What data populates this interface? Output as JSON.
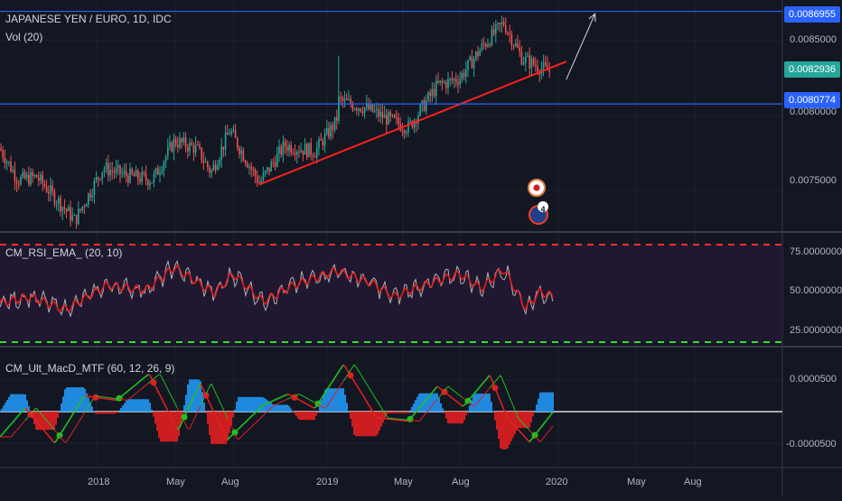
{
  "colors": {
    "bg": "#131722",
    "grid": "#1e222d",
    "separator": "#363a45",
    "up": "#26a69a",
    "down": "#ef5350",
    "trendline": "#ff1f1f",
    "hline": "#2962ff",
    "current_tag": "#26a69a",
    "rsi_line": "#e02020",
    "rsi_signal": "#b0b0b0",
    "rsi_upper": "#ff3030",
    "rsi_lower": "#33dd33",
    "rsi_band": "#1f1830",
    "macd_zero": "#ffffff",
    "macd_green": "#22c022",
    "macd_red": "#e02020",
    "hist_up": "#2196f3",
    "hist_down": "#e02020"
  },
  "header": {
    "symbol_title": "JAPANESE YEN / EURO, 1D, IDC",
    "volume_label": "Vol (20)"
  },
  "price_tags": [
    {
      "value": "0.0086955",
      "kind": "hline"
    },
    {
      "value": "0.0082936",
      "kind": "current"
    },
    {
      "value": "0.0080774",
      "kind": "hline"
    }
  ],
  "events": {
    "marker_count": "4"
  },
  "chart_data": [
    {
      "type": "candlestick",
      "title": "JAPANESE YEN / EURO, 1D, IDC",
      "x_ticks": [
        "2018",
        "May",
        "Aug",
        "2019",
        "May",
        "Aug",
        "2020",
        "May",
        "Aug"
      ],
      "y_ticks": [
        "0.0085000",
        "0.0080000",
        "0.0075000"
      ],
      "ylim": [
        0.0071,
        0.0089
      ],
      "price_path": [
        [
          "2017-09-20",
          0.00778
        ],
        [
          "2017-10-15",
          0.00757
        ],
        [
          "2017-11-10",
          0.00759
        ],
        [
          "2017-12-15",
          0.0074
        ],
        [
          "2018-01-02",
          0.0073
        ],
        [
          "2018-02-10",
          0.00765
        ],
        [
          "2018-03-15",
          0.0076
        ],
        [
          "2018-04-20",
          0.00757
        ],
        [
          "2018-05-20",
          0.00783
        ],
        [
          "2018-06-20",
          0.00778
        ],
        [
          "2018-07-10",
          0.00762
        ],
        [
          "2018-08-05",
          0.0079
        ],
        [
          "2018-09-15",
          0.00755
        ],
        [
          "2018-10-20",
          0.0078
        ],
        [
          "2018-12-01",
          0.00776
        ],
        [
          "2018-12-31",
          0.00796
        ],
        [
          "2019-01-03",
          0.0081
        ],
        [
          "2019-02-10",
          0.00805
        ],
        [
          "2019-03-15",
          0.00797
        ],
        [
          "2019-04-10",
          0.00792
        ],
        [
          "2019-05-20",
          0.0082
        ],
        [
          "2019-06-20",
          0.00825
        ],
        [
          "2019-07-20",
          0.00845
        ],
        [
          "2019-08-20",
          0.00862
        ],
        [
          "2019-09-15",
          0.00838
        ],
        [
          "2019-10-10",
          0.00832
        ],
        [
          "2019-10-25",
          0.00829
        ]
      ],
      "annotations": [
        {
          "type": "trendline",
          "from": [
            "2018-09-15",
            0.00754
          ],
          "to": [
            "2019-11-15",
            0.00836
          ]
        },
        {
          "type": "arrow",
          "from": [
            "2019-11-15",
            0.00824
          ],
          "to": [
            "2019-12-25",
            0.00868
          ]
        },
        {
          "type": "hline",
          "value": 0.0086955
        },
        {
          "type": "hline",
          "value": 0.0080774
        }
      ],
      "current_price": 0.0082936
    },
    {
      "type": "line",
      "title": "CM_RSI_EMA_ (20, 10)",
      "y_ticks": [
        "75.0000000",
        "50.0000000",
        "25.0000000"
      ],
      "ylim": [
        14,
        89
      ],
      "levels": [
        80,
        20
      ],
      "series": [
        {
          "x": [
            "2017-09-20",
            "2017-11-01",
            "2017-12-20",
            "2018-02-15",
            "2018-04-10",
            "2018-05-20",
            "2018-07-15",
            "2018-08-10",
            "2018-09-20",
            "2018-11-01",
            "2018-12-31",
            "2019-02-20",
            "2019-03-20",
            "2019-05-01",
            "2019-06-20",
            "2019-07-20",
            "2019-08-20",
            "2019-09-20",
            "2019-10-10",
            "2019-10-28"
          ],
          "values": [
            44,
            48,
            40,
            55,
            52,
            66,
            50,
            62,
            45,
            55,
            64,
            56,
            48,
            55,
            62,
            53,
            65,
            41,
            51,
            48
          ]
        }
      ]
    },
    {
      "type": "line",
      "title": "CM_Ult_MacD_MTF (60, 12, 26, 9)",
      "y_ticks": [
        "0.0000500",
        "-0.0000500"
      ],
      "ylim": [
        -7e-05,
        8e-05
      ],
      "series": [
        {
          "x": [
            "2017-09-20",
            "2017-10-25",
            "2017-12-05",
            "2018-01-15",
            "2018-03-01",
            "2018-04-15",
            "2018-05-25",
            "2018-06-25",
            "2018-08-01",
            "2018-09-20",
            "2018-10-25",
            "2018-12-01",
            "2019-01-10",
            "2019-02-25",
            "2019-04-10",
            "2019-05-20",
            "2019-06-25",
            "2019-08-01",
            "2019-08-25",
            "2019-09-25",
            "2019-10-28"
          ],
          "values": [
            -4e-05,
            6e-06,
            -5e-05,
            2.5e-05,
            1.8e-05,
            6e-05,
            -3e-05,
            4.5e-05,
            -4.5e-05,
            1e-05,
            2.8e-05,
            5e-06,
            7.5e-05,
            -1e-05,
            -1.5e-05,
            4e-05,
            8e-06,
            5.8e-05,
            -1e-05,
            -4.8e-05,
            0.0
          ]
        }
      ]
    }
  ]
}
